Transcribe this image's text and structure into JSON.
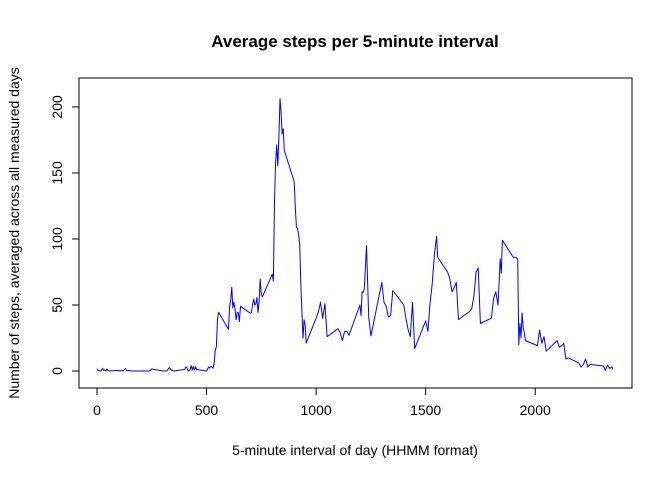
{
  "chart_data": {
    "type": "line",
    "title": "Average steps per 5-minute interval",
    "xlabel": "5-minute interval of day (HHMM format)",
    "ylabel": "Number of steps, averaged across all measured days",
    "xlim": [
      0,
      2355
    ],
    "ylim": [
      0,
      206
    ],
    "xticks": [
      0,
      500,
      1000,
      1500,
      2000
    ],
    "yticks": [
      0,
      50,
      100,
      150,
      200
    ],
    "line_color": "#0000ff",
    "grid": false,
    "legend": "none",
    "series": [
      {
        "x": [
          0,
          5,
          10,
          15,
          20,
          25,
          30,
          35,
          40,
          45,
          50,
          55,
          100,
          105,
          110,
          115,
          120,
          125,
          130,
          135,
          140,
          145,
          150,
          155,
          200,
          210,
          220,
          230,
          240,
          250,
          300,
          310,
          320,
          330,
          340,
          350,
          400,
          405,
          410,
          415,
          420,
          425,
          430,
          435,
          440,
          445,
          450,
          455,
          500,
          505,
          510,
          515,
          520,
          525,
          530,
          535,
          540,
          545,
          550,
          555,
          600,
          605,
          610,
          615,
          620,
          625,
          630,
          635,
          640,
          645,
          650,
          655,
          700,
          705,
          710,
          715,
          720,
          725,
          730,
          735,
          740,
          745,
          750,
          755,
          800,
          805,
          810,
          815,
          820,
          825,
          830,
          835,
          840,
          845,
          850,
          855,
          900,
          905,
          910,
          915,
          920,
          925,
          930,
          935,
          940,
          945,
          950,
          955,
          1000,
          1010,
          1020,
          1030,
          1040,
          1050,
          1100,
          1110,
          1120,
          1130,
          1140,
          1150,
          1200,
          1205,
          1210,
          1215,
          1220,
          1230,
          1240,
          1250,
          1300,
          1310,
          1320,
          1330,
          1340,
          1350,
          1400,
          1410,
          1420,
          1430,
          1440,
          1450,
          1500,
          1510,
          1520,
          1530,
          1540,
          1550,
          1555,
          1600,
          1610,
          1620,
          1630,
          1640,
          1650,
          1700,
          1710,
          1720,
          1730,
          1740,
          1750,
          1800,
          1810,
          1820,
          1830,
          1840,
          1845,
          1850,
          1900,
          1910,
          1920,
          1925,
          1930,
          1935,
          1940,
          1945,
          1950,
          1955,
          2000,
          2010,
          2020,
          2030,
          2040,
          2050,
          2100,
          2110,
          2120,
          2130,
          2140,
          2150,
          2200,
          2210,
          2220,
          2230,
          2240,
          2250,
          2300,
          2310,
          2320,
          2330,
          2340,
          2350,
          2355
        ],
        "y": [
          1.7,
          0.3,
          0.1,
          0.2,
          0.1,
          2.1,
          0.5,
          0.9,
          0,
          1.5,
          0.3,
          0.1,
          0.4,
          0,
          0.2,
          0.3,
          0,
          1.1,
          1.8,
          0.2,
          0.2,
          0.4,
          0.3,
          0,
          0,
          0.1,
          0,
          0,
          0,
          1.5,
          0,
          0,
          0.2,
          2.6,
          0.5,
          0,
          1.2,
          3,
          2.5,
          0,
          0.3,
          1.1,
          4.1,
          0.7,
          3.5,
          0.8,
          3.1,
          1.1,
          0,
          1.5,
          3,
          2.2,
          3.3,
          3,
          2.1,
          6.1,
          16,
          18.3,
          39.5,
          44.5,
          31.5,
          49.3,
          53.8,
          63.5,
          47.8,
          52.2,
          47.1,
          38.8,
          44.2,
          44.2,
          37.4,
          49,
          43.8,
          44.4,
          50.5,
          54.5,
          49.9,
          51,
          55.7,
          44.3,
          52.3,
          69.5,
          57.8,
          56.2,
          73.4,
          68.2,
          129.4,
          157.5,
          171.2,
          155.4,
          177.3,
          206.2,
          195.9,
          179.6,
          183.4,
          167.0,
          143.5,
          124.0,
          109.1,
          108.1,
          103.7,
          95.97,
          66.2,
          45.2,
          24.8,
          38.8,
          34.98,
          21.1,
          40.0,
          44.5,
          52.0,
          40.0,
          51.0,
          26.0,
          32.0,
          29.0,
          23.0,
          30.0,
          30.0,
          27.0,
          50.0,
          42.0,
          60.0,
          59.5,
          62.0,
          95.0,
          41.0,
          26.5,
          67.0,
          52.0,
          49.0,
          41.0,
          42.0,
          61.0,
          50.0,
          40.0,
          31.5,
          26.0,
          52.0,
          17.0,
          38.0,
          30.0,
          51.0,
          66.0,
          88.0,
          102.0,
          86.0,
          75.0,
          70.0,
          60.0,
          63.0,
          67.0,
          39.0,
          45.0,
          47.0,
          57.0,
          75.0,
          78.0,
          36.0,
          40.0,
          55.0,
          60.0,
          50.0,
          85.0,
          74.0,
          99.0,
          86.0,
          86.0,
          85.0,
          20.0,
          36.0,
          25.0,
          44.0,
          33.0,
          29.0,
          23.0,
          20.0,
          19.0,
          31.0,
          21.0,
          26.0,
          15.0,
          23.0,
          18.0,
          19.0,
          21.0,
          9.0,
          10.0,
          6.0,
          3.0,
          5.0,
          9.0,
          3.0,
          5.0,
          4.0,
          4.0,
          0.5,
          4.5,
          2.0,
          3.0,
          1.1
        ]
      }
    ]
  }
}
